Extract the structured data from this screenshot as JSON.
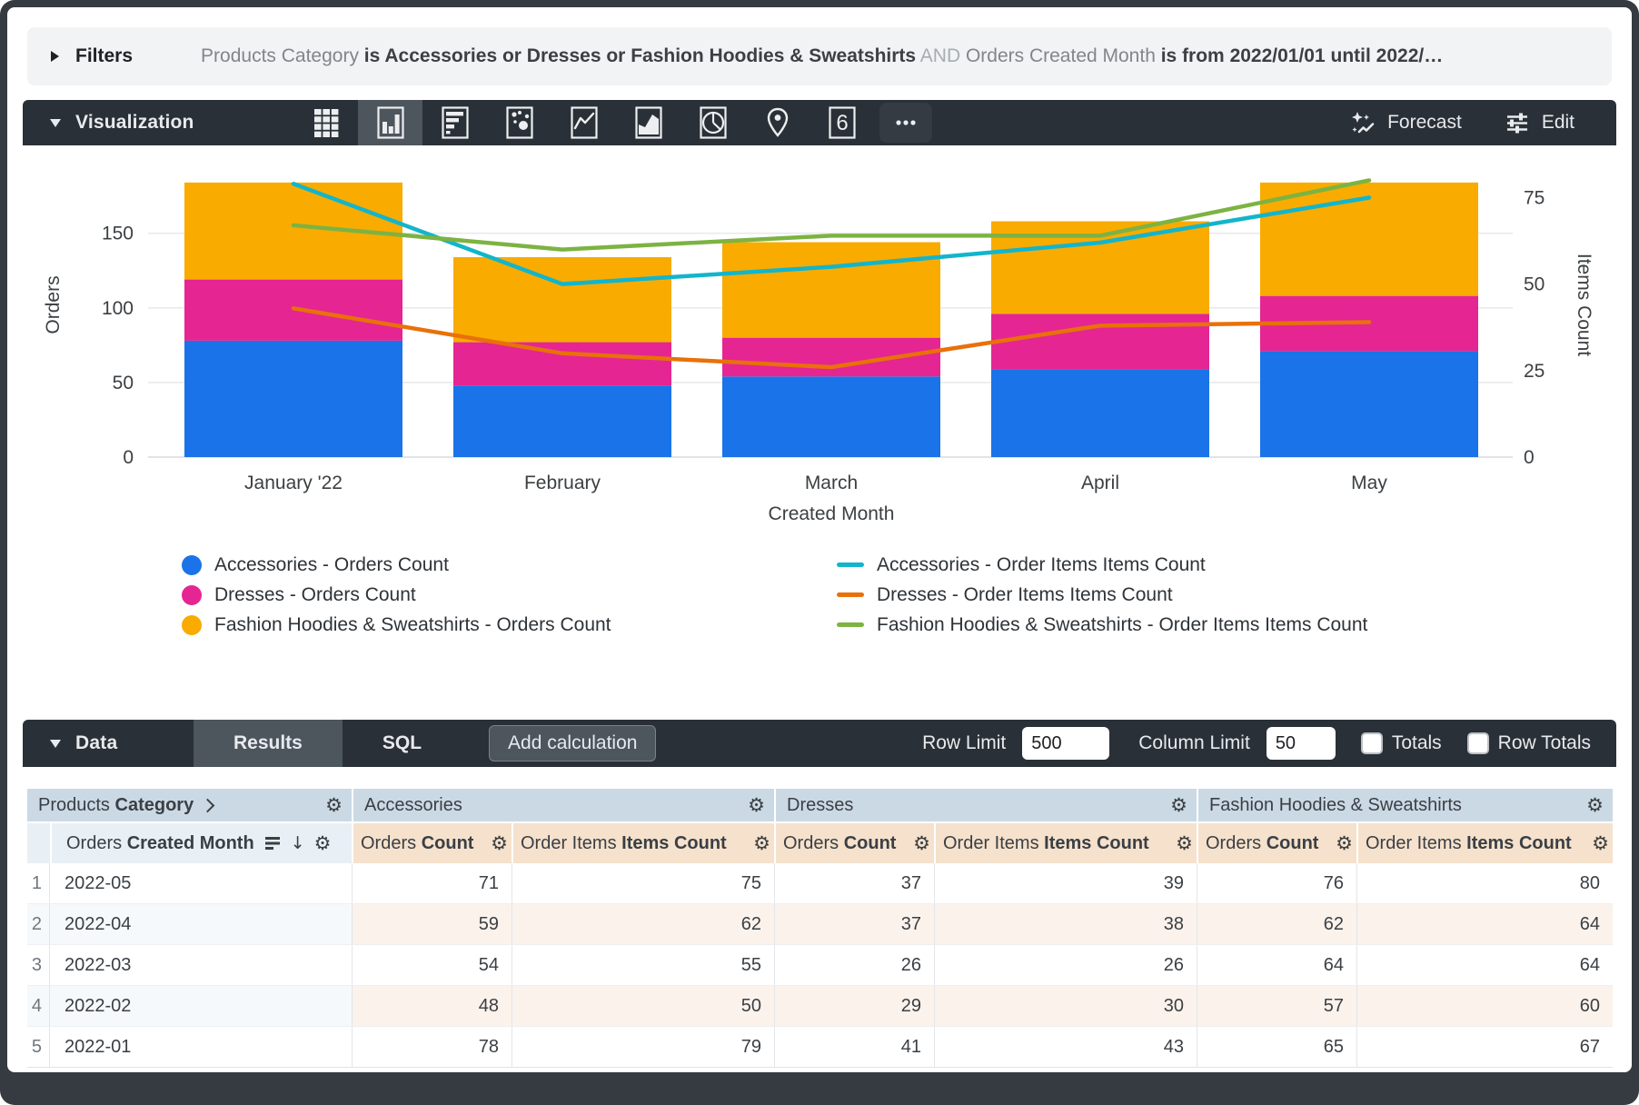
{
  "filters": {
    "label": "Filters",
    "segments": [
      {
        "text": "Products Category ",
        "style": "dim"
      },
      {
        "text": "is Accessories or Dresses or Fashion Hoodies & Sweatshirts",
        "style": "strong"
      },
      {
        "text": " AND ",
        "style": "faint"
      },
      {
        "text": "Orders Created Month ",
        "style": "dim"
      },
      {
        "text": "is from 2022/01/01 until 2022/…",
        "style": "strong"
      }
    ]
  },
  "visualization": {
    "title": "Visualization",
    "icons": [
      {
        "name": "table-chart-icon",
        "selected": false
      },
      {
        "name": "column-chart-icon",
        "selected": true
      },
      {
        "name": "bar-chart-icon",
        "selected": false
      },
      {
        "name": "scatter-chart-icon",
        "selected": false
      },
      {
        "name": "line-chart-icon",
        "selected": false
      },
      {
        "name": "area-chart-icon",
        "selected": false
      },
      {
        "name": "pie-chart-icon",
        "selected": false
      },
      {
        "name": "map-chart-icon",
        "selected": false
      },
      {
        "name": "single-value-icon",
        "selected": false,
        "glyph": "6"
      },
      {
        "name": "more-options-icon",
        "selected": false
      }
    ],
    "forecast_label": "Forecast",
    "edit_label": "Edit"
  },
  "chart_data": {
    "type": "combo (stacked bar + line, dual axis)",
    "categories": [
      "January '22",
      "February",
      "March",
      "April",
      "May"
    ],
    "xlabel": "Created Month",
    "left_axis": {
      "label": "Orders",
      "ticks": [
        0,
        50,
        100,
        150
      ],
      "max": 204
    },
    "right_axis": {
      "label": "Items Count",
      "ticks": [
        0,
        25,
        50,
        75
      ],
      "max": 88
    },
    "grid": true,
    "legend_position": "bottom",
    "bar_series": [
      {
        "name": "Accessories - Orders Count",
        "color": "#1A73E8",
        "values": [
          78,
          48,
          54,
          59,
          71
        ]
      },
      {
        "name": "Dresses - Orders Count",
        "color": "#E52592",
        "values": [
          41,
          29,
          26,
          37,
          37
        ]
      },
      {
        "name": "Fashion Hoodies & Sweatshirts - Orders Count",
        "color": "#F9AB00",
        "values": [
          65,
          57,
          64,
          62,
          76
        ]
      }
    ],
    "line_series": [
      {
        "name": "Accessories - Order Items Items Count",
        "color": "#12B5CB",
        "values": [
          79,
          50,
          55,
          62,
          75
        ]
      },
      {
        "name": "Dresses - Order Items Items Count",
        "color": "#E8710A",
        "values": [
          43,
          30,
          26,
          38,
          39
        ]
      },
      {
        "name": "Fashion Hoodies & Sweatshirts - Order Items Items Count",
        "color": "#7CB342",
        "values": [
          67,
          60,
          64,
          64,
          80
        ]
      }
    ]
  },
  "data_bar": {
    "title": "Data",
    "tabs": [
      {
        "label": "Results",
        "active": true
      },
      {
        "label": "SQL",
        "active": false
      }
    ],
    "add_calculation_label": "Add calculation",
    "row_limit_label": "Row Limit",
    "row_limit_value": "500",
    "column_limit_label": "Column Limit",
    "column_limit_value": "50",
    "totals_label": "Totals",
    "row_totals_label": "Row Totals",
    "totals_checked": false,
    "row_totals_checked": false
  },
  "table": {
    "group_headers": [
      {
        "prefix": "Products",
        "bold": "Category"
      },
      {
        "label": "Accessories"
      },
      {
        "label": "Dresses"
      },
      {
        "label": "Fashion Hoodies & Sweatshirts"
      }
    ],
    "dimension_header": {
      "prefix": "Orders",
      "bold": "Created Month"
    },
    "measure_headers": [
      {
        "prefix": "Orders",
        "bold": "Count"
      },
      {
        "prefix": "Order Items",
        "bold": "Items Count"
      }
    ],
    "rows": [
      {
        "num": "1",
        "month": "2022-05",
        "values": [
          "71",
          "75",
          "37",
          "39",
          "76",
          "80"
        ]
      },
      {
        "num": "2",
        "month": "2022-04",
        "values": [
          "59",
          "62",
          "37",
          "38",
          "62",
          "64"
        ]
      },
      {
        "num": "3",
        "month": "2022-03",
        "values": [
          "54",
          "55",
          "26",
          "26",
          "64",
          "64"
        ]
      },
      {
        "num": "4",
        "month": "2022-02",
        "values": [
          "48",
          "50",
          "29",
          "30",
          "57",
          "60"
        ]
      },
      {
        "num": "5",
        "month": "2022-01",
        "values": [
          "78",
          "79",
          "41",
          "43",
          "65",
          "67"
        ]
      }
    ]
  }
}
